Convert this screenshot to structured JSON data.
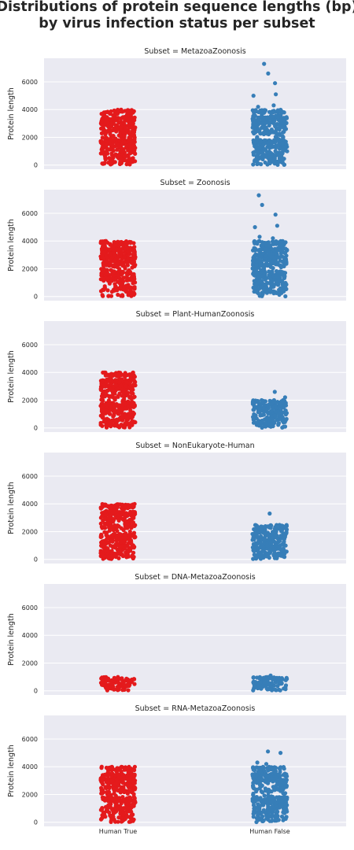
{
  "title_line1": "Distributions of protein sequence lengths (bp)",
  "title_line2": "by virus infection status per subset",
  "colors": {
    "human_true": "#e41a1c",
    "human_false": "#377eb8",
    "panel_bg": "#eaeaf2",
    "grid": "#ffffff"
  },
  "chart_data": {
    "type": "scatter",
    "subtype": "strip/jitter",
    "categories": [
      "Human True",
      "Human False"
    ],
    "ylabel": "Protein length",
    "ylim": [
      -300,
      7700
    ],
    "yticks": [
      0,
      2000,
      4000,
      6000
    ],
    "ytick_labels": [
      "0",
      "2000",
      "4000",
      "6000"
    ],
    "grid": true,
    "legend": "none",
    "panels": [
      {
        "title": "Subset = MetazoaZoonosis",
        "series": [
          {
            "category": "Human True",
            "range": [
              0,
              4000
            ],
            "outliers": []
          },
          {
            "category": "Human False",
            "range": [
              0,
              4000
            ],
            "outliers": [
              5000,
              5100,
              5900,
              6600,
              7300,
              4300,
              4200
            ]
          }
        ]
      },
      {
        "title": "Subset = Zoonosis",
        "series": [
          {
            "category": "Human True",
            "range": [
              0,
              4000
            ],
            "outliers": []
          },
          {
            "category": "Human False",
            "range": [
              0,
              4000
            ],
            "outliers": [
              4200,
              4300,
              5000,
              5100,
              5900,
              6600,
              7300
            ]
          }
        ]
      },
      {
        "title": "Subset = Plant-HumanZoonosis",
        "series": [
          {
            "category": "Human True",
            "range": [
              0,
              4000
            ],
            "outliers": []
          },
          {
            "category": "Human False",
            "range": [
              0,
              2000
            ],
            "outliers": [
              2200,
              2600
            ]
          }
        ]
      },
      {
        "title": "Subset = NonEukaryote-Human",
        "series": [
          {
            "category": "Human True",
            "range": [
              0,
              4000
            ],
            "outliers": []
          },
          {
            "category": "Human False",
            "range": [
              0,
              2500
            ],
            "outliers": [
              3300
            ]
          }
        ]
      },
      {
        "title": "Subset = DNA-MetazoaZoonosis",
        "series": [
          {
            "category": "Human True",
            "range": [
              0,
              1000
            ],
            "outliers": []
          },
          {
            "category": "Human False",
            "range": [
              0,
              1000
            ],
            "outliers": [
              1100
            ]
          }
        ]
      },
      {
        "title": "Subset = RNA-MetazoaZoonosis",
        "series": [
          {
            "category": "Human True",
            "range": [
              0,
              4000
            ],
            "outliers": []
          },
          {
            "category": "Human False",
            "range": [
              0,
              4000
            ],
            "outliers": [
              4200,
              4300,
              5000,
              5100
            ]
          }
        ]
      }
    ]
  }
}
